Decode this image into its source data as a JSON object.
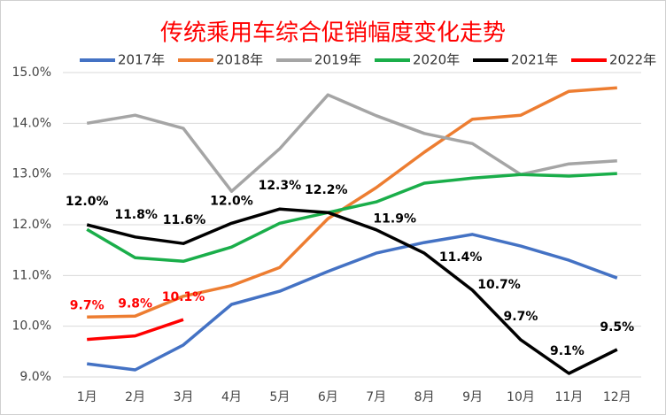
{
  "chart_data": {
    "type": "line",
    "title": "传统乘用车综合促销幅度变化走势",
    "categories": [
      "1月",
      "2月",
      "3月",
      "4月",
      "5月",
      "6月",
      "7月",
      "8月",
      "9月",
      "10月",
      "11月",
      "12月"
    ],
    "ylim": [
      9,
      15
    ],
    "yticks": [
      {
        "value": 9,
        "label": "9.0%"
      },
      {
        "value": 10,
        "label": "10.0%"
      },
      {
        "value": 11,
        "label": "11.0%"
      },
      {
        "value": 12,
        "label": "12.0%"
      },
      {
        "value": 13,
        "label": "13.0%"
      },
      {
        "value": 14,
        "label": "14.0%"
      },
      {
        "value": 15,
        "label": "15.0%"
      }
    ],
    "grid": true,
    "legend": "top",
    "series": [
      {
        "name": "2017年",
        "color": "#4472c4",
        "values": [
          9.26,
          9.14,
          9.63,
          10.43,
          10.69,
          11.08,
          11.44,
          11.65,
          11.81,
          11.58,
          11.3,
          10.95
        ]
      },
      {
        "name": "2018年",
        "color": "#ed7d31",
        "values": [
          10.18,
          10.2,
          10.59,
          10.8,
          11.16,
          12.12,
          12.73,
          13.43,
          14.08,
          14.16,
          14.63,
          14.7
        ]
      },
      {
        "name": "2019年",
        "color": "#a5a5a5",
        "values": [
          14.0,
          14.16,
          13.9,
          12.66,
          13.5,
          14.56,
          14.15,
          13.8,
          13.6,
          12.99,
          13.2,
          13.26
        ]
      },
      {
        "name": "2020年",
        "color": "#1aae4a",
        "values": [
          11.91,
          11.35,
          11.28,
          11.56,
          12.03,
          12.24,
          12.45,
          12.82,
          12.92,
          12.99,
          12.96,
          13.01
        ]
      },
      {
        "name": "2021年",
        "color": "#000000",
        "values": [
          12.0,
          11.76,
          11.63,
          12.03,
          12.31,
          12.24,
          11.9,
          11.44,
          10.71,
          9.73,
          9.07,
          9.54
        ],
        "value_labels": [
          "12.0%",
          "11.8%",
          "11.6%",
          "12.0%",
          "12.3%",
          "12.2%",
          "11.9%",
          "11.4%",
          "10.7%",
          "9.7%",
          "9.1%",
          "9.5%"
        ]
      },
      {
        "name": "2022年",
        "color": "#ff0000",
        "values": [
          9.74,
          9.81,
          10.13,
          null,
          null,
          null,
          null,
          null,
          null,
          null,
          null,
          null
        ],
        "value_labels": [
          "9.7%",
          "9.8%",
          "10.1%",
          null,
          null,
          null,
          null,
          null,
          null,
          null,
          null,
          null
        ]
      }
    ]
  }
}
